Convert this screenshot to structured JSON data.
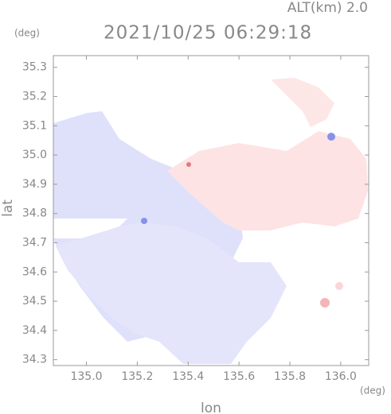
{
  "chart_data": {
    "type": "map",
    "title": "2021/10/25 06:29:18",
    "subtitle": "ALT(km) 2.0",
    "x_label": "lon",
    "y_label": "lat",
    "x_unit": "(deg)",
    "y_unit": "(deg)",
    "xlim": [
      134.87,
      136.11
    ],
    "ylim": [
      34.28,
      35.34
    ],
    "xticks": [
      {
        "value": 135,
        "label": "135.0"
      },
      135.2,
      135.4,
      135.6,
      135.8,
      {
        "value": 136,
        "label": "136.0"
      }
    ],
    "yticks": [
      34.3,
      34.4,
      34.5,
      34.6,
      34.7,
      34.8,
      34.9,
      {
        "value": 35,
        "label": "35.0"
      },
      35.1,
      35.2,
      35.3
    ]
  }
}
